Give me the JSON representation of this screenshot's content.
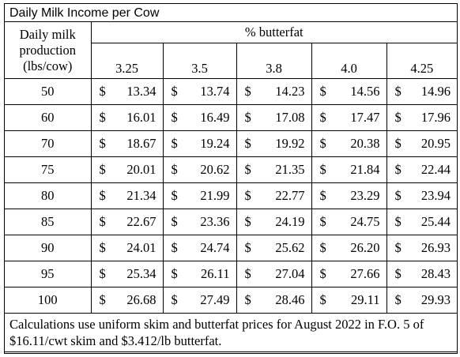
{
  "title": "Daily Milk Income per Cow",
  "header": {
    "row_label_lines": [
      "Daily milk",
      "production",
      "(lbs/cow)"
    ],
    "group_label": "% butterfat",
    "columns": [
      "3.25",
      "3.5",
      "3.8",
      "4.0",
      "4.25"
    ]
  },
  "currency_symbol": "$",
  "rows": [
    {
      "production": "50",
      "values": [
        "13.34",
        "13.74",
        "14.23",
        "14.56",
        "14.96"
      ]
    },
    {
      "production": "60",
      "values": [
        "16.01",
        "16.49",
        "17.08",
        "17.47",
        "17.96"
      ]
    },
    {
      "production": "70",
      "values": [
        "18.67",
        "19.24",
        "19.92",
        "20.38",
        "20.95"
      ]
    },
    {
      "production": "75",
      "values": [
        "20.01",
        "20.62",
        "21.35",
        "21.84",
        "22.44"
      ]
    },
    {
      "production": "80",
      "values": [
        "21.34",
        "21.99",
        "22.77",
        "23.29",
        "23.94"
      ]
    },
    {
      "production": "85",
      "values": [
        "22.67",
        "23.36",
        "24.19",
        "24.75",
        "25.44"
      ]
    },
    {
      "production": "90",
      "values": [
        "24.01",
        "24.74",
        "25.62",
        "26.20",
        "26.93"
      ]
    },
    {
      "production": "95",
      "values": [
        "25.34",
        "26.11",
        "27.04",
        "27.66",
        "28.43"
      ]
    },
    {
      "production": "100",
      "values": [
        "26.68",
        "27.49",
        "28.46",
        "29.11",
        "29.93"
      ]
    }
  ],
  "footnote": "Calculations use uniform skim and butterfat prices for August 2022 in F.O. 5 of $16.11/cwt skim and $3.412/lb butterfat."
}
